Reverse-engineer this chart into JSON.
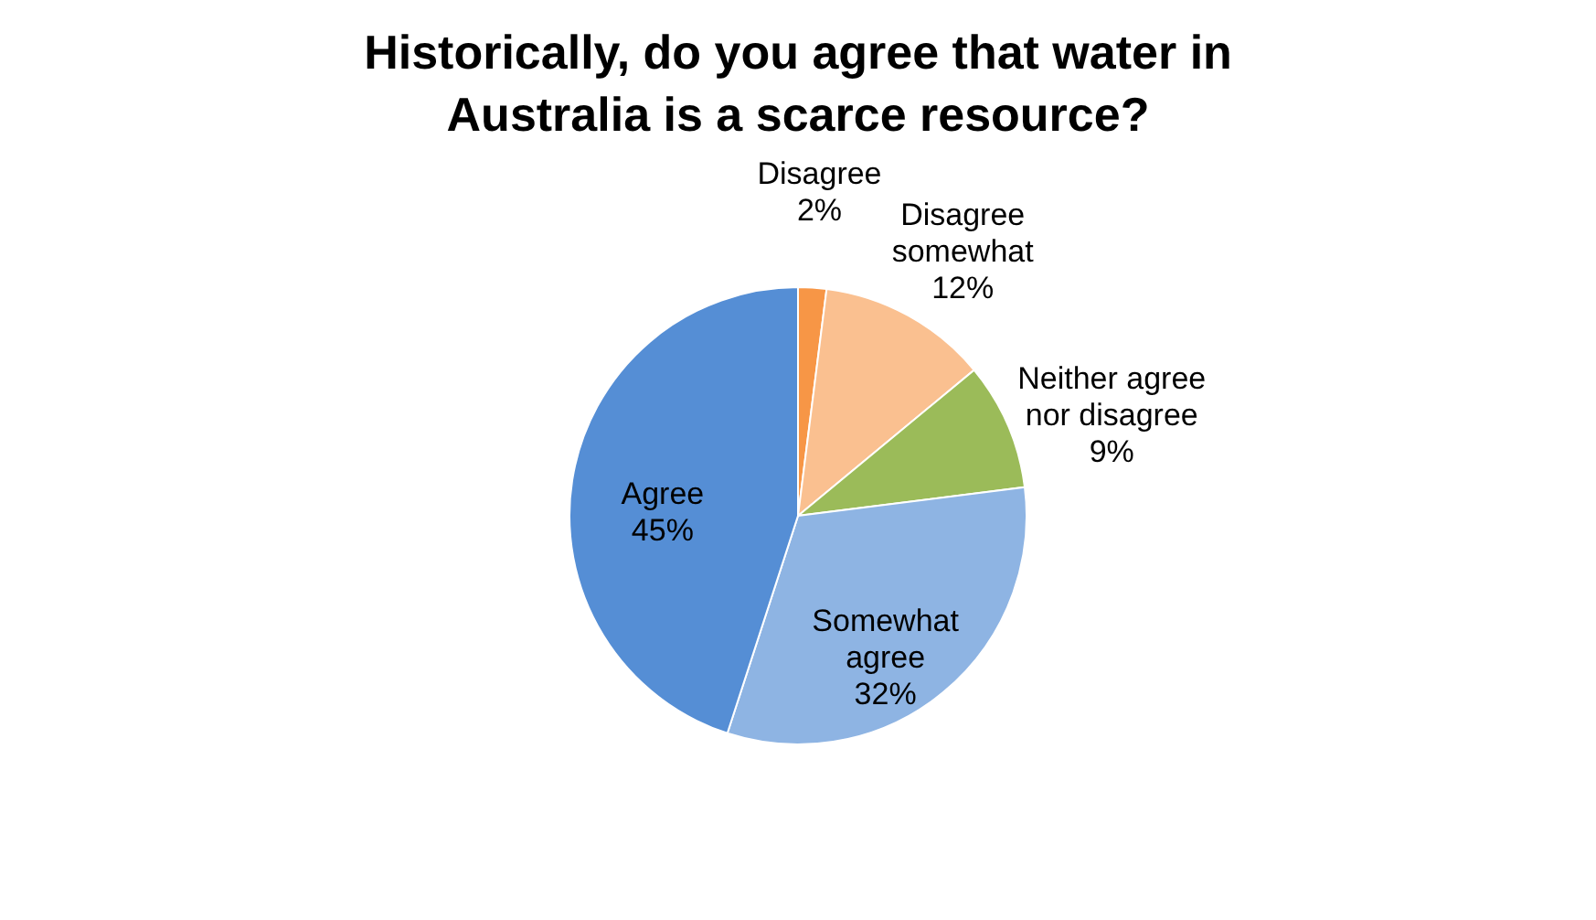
{
  "chart_data": {
    "type": "pie",
    "title": "Historically, do you agree that water in Australia is a scarce resource?",
    "categories": [
      "Disagree",
      "Disagree somewhat",
      "Neither agree nor disagree",
      "Somewhat agree",
      "Agree"
    ],
    "values": [
      2,
      12,
      9,
      32,
      45
    ],
    "value_labels": [
      "2%",
      "12%",
      "9%",
      "32%",
      "45%"
    ],
    "colors": [
      "#f79646",
      "#fac090",
      "#9bbb59",
      "#8eb4e3",
      "#558ed5"
    ],
    "legend": false
  }
}
